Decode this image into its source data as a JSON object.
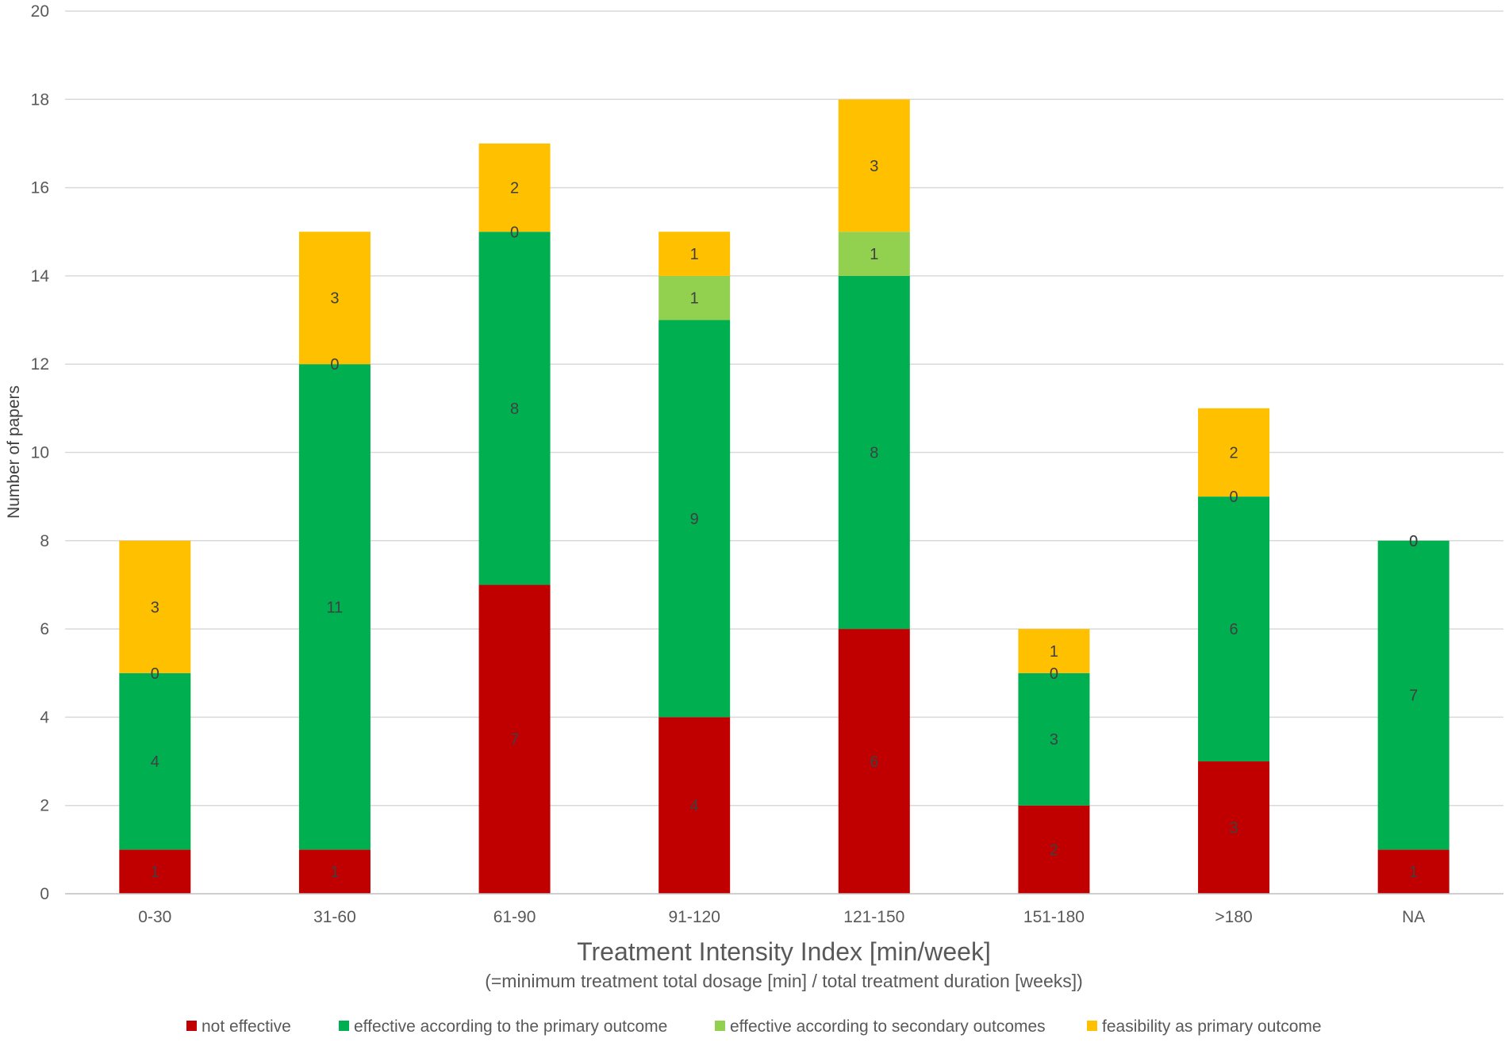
{
  "chart_data": {
    "type": "bar",
    "stacked": true,
    "title": "",
    "xlabel": "Treatment Intensity Index [min/week]",
    "xlabel_subtitle": "(=minimum treatment total dosage [min] / total treatment duration [weeks])",
    "ylabel": "Number of papers",
    "ylim": [
      0,
      20
    ],
    "yticks": [
      0,
      2,
      4,
      6,
      8,
      10,
      12,
      14,
      16,
      18,
      20
    ],
    "grid": true,
    "legend_position": "bottom",
    "categories": [
      "0-30",
      "31-60",
      "61-90",
      "91-120",
      "121-150",
      "151-180",
      ">180",
      "NA"
    ],
    "series": [
      {
        "name": "not effective",
        "color": "#c00000",
        "values": [
          1,
          1,
          7,
          4,
          6,
          2,
          3,
          1
        ]
      },
      {
        "name": "effective according to the primary outcome",
        "color": "#00b050",
        "values": [
          4,
          11,
          8,
          9,
          8,
          3,
          6,
          7
        ]
      },
      {
        "name": "effective according to secondary outcomes",
        "color": "#92d050",
        "values": [
          0,
          0,
          0,
          1,
          1,
          0,
          0,
          0
        ]
      },
      {
        "name": "feasibility as primary outcome",
        "color": "#ffc000",
        "values": [
          3,
          3,
          2,
          1,
          3,
          1,
          2,
          0
        ]
      }
    ]
  }
}
